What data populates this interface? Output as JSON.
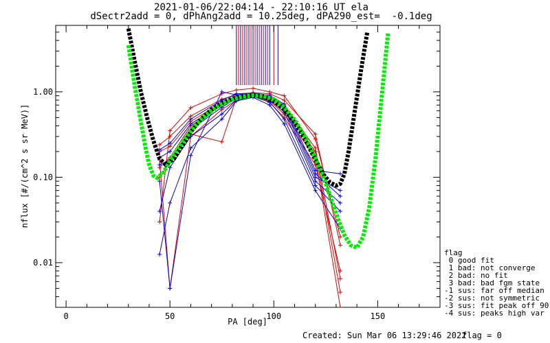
{
  "chart_data": {
    "type": "line",
    "title": "2021-01-06/22:04:14 - 22:10:16 UT ela",
    "subtitle": "dSectr2add = 0, dPhAng2add = 10.25deg, dPA290_est=  -0.1deg",
    "xlabel": "PA [deg]",
    "ylabel": "nflux [#/(cm^2 s sr MeV)]",
    "xlim": [
      -5,
      180
    ],
    "ylim": [
      0.003,
      6
    ],
    "yscale": "log",
    "x_ticks": [
      0,
      50,
      100,
      150
    ],
    "x_tick_labels": [
      "0",
      "50",
      "100",
      "150"
    ],
    "y_ticks": [
      0.01,
      0.1,
      1.0
    ],
    "y_tick_labels": [
      "0.01",
      "0.10",
      "1.00"
    ],
    "grid": false,
    "fit_curves": [
      {
        "color": "#000000",
        "x": [
          30,
          33,
          36,
          39,
          42,
          45,
          48,
          52,
          56,
          60,
          65,
          70,
          75,
          80,
          85,
          90,
          95,
          100,
          105,
          110,
          115,
          120,
          124,
          127,
          130,
          132,
          134,
          136,
          139,
          142,
          145
        ],
        "y": [
          5.5,
          2.3,
          1.0,
          0.5,
          0.27,
          0.165,
          0.14,
          0.165,
          0.24,
          0.34,
          0.48,
          0.62,
          0.74,
          0.83,
          0.89,
          0.91,
          0.88,
          0.78,
          0.62,
          0.44,
          0.28,
          0.16,
          0.107,
          0.087,
          0.08,
          0.084,
          0.11,
          0.2,
          0.6,
          1.8,
          5.0
        ]
      },
      {
        "color": "#00ee00",
        "x": [
          30,
          33,
          36,
          38,
          40,
          42,
          44,
          47,
          50,
          54,
          58,
          62,
          66,
          70,
          75,
          80,
          85,
          90,
          95,
          100,
          105,
          110,
          115,
          120,
          125,
          128,
          131,
          134,
          137,
          140,
          143,
          146,
          149,
          152,
          155
        ],
        "y": [
          3.5,
          1.2,
          0.45,
          0.24,
          0.14,
          0.105,
          0.098,
          0.115,
          0.155,
          0.22,
          0.3,
          0.4,
          0.5,
          0.6,
          0.72,
          0.81,
          0.88,
          0.91,
          0.89,
          0.82,
          0.66,
          0.47,
          0.3,
          0.17,
          0.085,
          0.052,
          0.032,
          0.021,
          0.016,
          0.015,
          0.02,
          0.045,
          0.17,
          0.9,
          5.0
        ]
      }
    ],
    "measured_curves": {
      "x": [
        45,
        50,
        60,
        75,
        82,
        90,
        98,
        105,
        120,
        132
      ],
      "series": [
        {
          "color": "#dd0000",
          "y": [
            0.24,
            0.3,
            0.52,
            0.82,
            0.92,
            0.98,
            0.95,
            0.8,
            0.32,
            0.016
          ]
        },
        {
          "color": "#dd0000",
          "y": [
            0.2,
            0.23,
            0.45,
            0.75,
            0.88,
            0.95,
            0.88,
            0.7,
            0.22,
            0.0065
          ]
        },
        {
          "color": "#dd0000",
          "y": [
            0.13,
            0.17,
            0.4,
            0.7,
            0.86,
            0.92,
            0.84,
            0.62,
            0.2,
            0.0045
          ]
        },
        {
          "color": "#dd0000",
          "y": [
            0.1,
            0.15,
            0.32,
            0.26,
            0.85,
            0.9,
            0.78,
            0.55,
            0.17,
            0.003
          ]
        },
        {
          "color": "#dd0000",
          "y": [
            0.03,
            0.35,
            0.65,
            0.95,
            1.05,
            1.1,
            1.0,
            0.9,
            0.28,
            0.02
          ]
        },
        {
          "color": "#dd0000",
          "y": [
            0.16,
            0.005,
            0.3,
            0.62,
            0.8,
            0.9,
            0.75,
            0.5,
            0.14,
            0.008
          ]
        },
        {
          "color": "#0000dd",
          "y": [
            0.21,
            0.25,
            0.48,
            0.8,
            0.95,
            0.97,
            0.91,
            0.72,
            0.12,
            0.11
          ]
        },
        {
          "color": "#0000dd",
          "y": [
            0.17,
            0.2,
            0.42,
            0.72,
            0.88,
            0.93,
            0.85,
            0.64,
            0.1,
            0.07
          ]
        },
        {
          "color": "#0000dd",
          "y": [
            0.14,
            0.16,
            0.36,
            0.66,
            0.84,
            0.9,
            0.8,
            0.58,
            0.09,
            0.05
          ]
        },
        {
          "color": "#0000dd",
          "y": [
            0.04,
            0.13,
            0.3,
            0.55,
            0.8,
            0.88,
            0.76,
            0.48,
            0.08,
            0.04
          ]
        },
        {
          "color": "#0000dd",
          "y": [
            0.0125,
            0.05,
            0.22,
            0.48,
            0.78,
            0.86,
            0.7,
            0.42,
            0.07,
            0.025
          ]
        },
        {
          "color": "#0000dd",
          "y": [
            0.09,
            0.005,
            0.18,
            1.0,
            0.92,
            0.95,
            0.88,
            0.68,
            0.11,
            0.06
          ]
        }
      ]
    },
    "vertical_lines": {
      "y_bottom": 1.2,
      "x": [
        82,
        83,
        84,
        85,
        86,
        87,
        88,
        89,
        90,
        91,
        92,
        93,
        94,
        95,
        96,
        97,
        98,
        100,
        102
      ],
      "colors": [
        "#0000dd",
        "#dd0000",
        "#0000dd",
        "#dd0000",
        "#0000dd",
        "#dd0000",
        "#0000dd",
        "#dd0000",
        "#0000dd",
        "#dd0000",
        "#0000dd",
        "#dd0000",
        "#0000dd",
        "#dd0000",
        "#0000dd",
        "#dd0000",
        "#0000dd",
        "#dd0000",
        "#0000dd"
      ]
    },
    "legend": {
      "title": "flag",
      "entries": [
        " 0 good fit",
        " 1 bad: not converge",
        " 2 bad: no fit",
        " 3 bad: bad fgm state",
        "-1 sus: far off median",
        "-2 sus: not symmetric",
        "-3 sus: fit peak off 90",
        "-4 sus: peaks high var"
      ]
    }
  },
  "footer": {
    "created": "Created: Sun Mar 06 13:29:46 2022",
    "flag": "flag = 0"
  }
}
